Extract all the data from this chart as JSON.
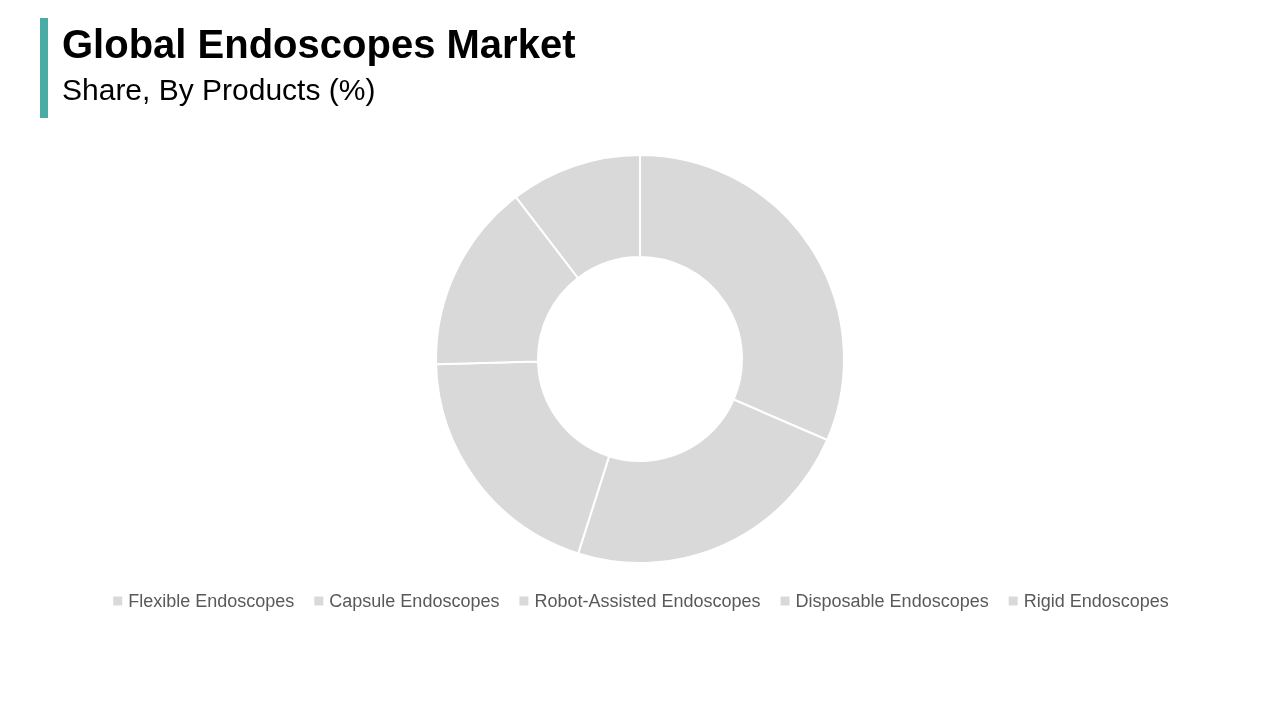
{
  "chart_data": {
    "type": "donut",
    "title": "Global Endoscopes Market",
    "subtitle": "Share, By Products (%)",
    "categories": [
      "Flexible Endoscopes",
      "Capsule Endoscopes",
      "Robot-Assisted Endoscopes",
      "Disposable Endoscopes",
      "Rigid Endoscopes"
    ],
    "values": [
      31.5,
      23.4,
      19.7,
      15.0,
      10.4
    ],
    "colors": [
      "#d9d9d9",
      "#d9d9d9",
      "#d9d9d9",
      "#d9d9d9",
      "#d9d9d9"
    ],
    "legend": "bottom"
  }
}
